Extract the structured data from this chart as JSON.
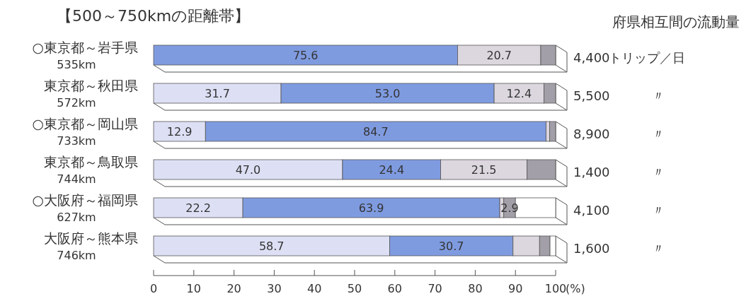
{
  "chart_data": {
    "type": "bar",
    "orientation": "horizontal",
    "stacked": true,
    "title": "【500～750kmの距離帯】",
    "xlabel": "(%)",
    "categories": [
      "○東京都～岩手県\n535km",
      "東京都～秋田県\n572km",
      "○東京都～岡山県\n733km",
      "東京都～鳥取県\n744km",
      "○大阪府～福岡県\n627km",
      "大阪府～熊本県\n746km"
    ],
    "series": [
      {
        "color": "#dde0f4",
        "values": [
          0,
          31.7,
          12.9,
          47.0,
          22.2,
          58.7
        ],
        "value_labels": [
          null,
          "31.7",
          "12.9",
          "47.0",
          "22.2",
          "58.7"
        ]
      },
      {
        "color": "#7f9be0",
        "values": [
          75.6,
          53.0,
          84.7,
          24.4,
          63.9,
          30.7
        ],
        "value_labels": [
          "75.6",
          "53.0",
          "84.7",
          "24.4",
          "63.9",
          "30.7"
        ]
      },
      {
        "color": "#dcd6df",
        "values": [
          20.7,
          12.4,
          0.9,
          21.5,
          1.0,
          6.6
        ],
        "value_labels": [
          "20.7",
          "12.4",
          null,
          "21.5",
          null,
          null
        ]
      },
      {
        "color": "#a39fa8",
        "values": [
          3.7,
          2.9,
          1.5,
          7.1,
          2.9,
          2.6
        ],
        "value_labels": [
          null,
          null,
          null,
          null,
          "2.9",
          null
        ]
      },
      {
        "color": "#ffffff",
        "values": [
          0,
          0,
          0,
          0,
          10.0,
          1.4
        ],
        "value_labels": [
          null,
          null,
          null,
          null,
          null,
          null
        ]
      }
    ],
    "xlim": [
      0,
      100
    ],
    "xticks": [
      0,
      10,
      20,
      30,
      40,
      50,
      60,
      70,
      80,
      90,
      100
    ],
    "grid": false,
    "annotations": [
      "府県相互間の流動量",
      "4,400",
      "トリップ／日",
      "5,500",
      "〃",
      "8,900",
      "〃",
      "1,400",
      "〃",
      "4,100",
      "〃",
      "1,600",
      "〃"
    ]
  }
}
